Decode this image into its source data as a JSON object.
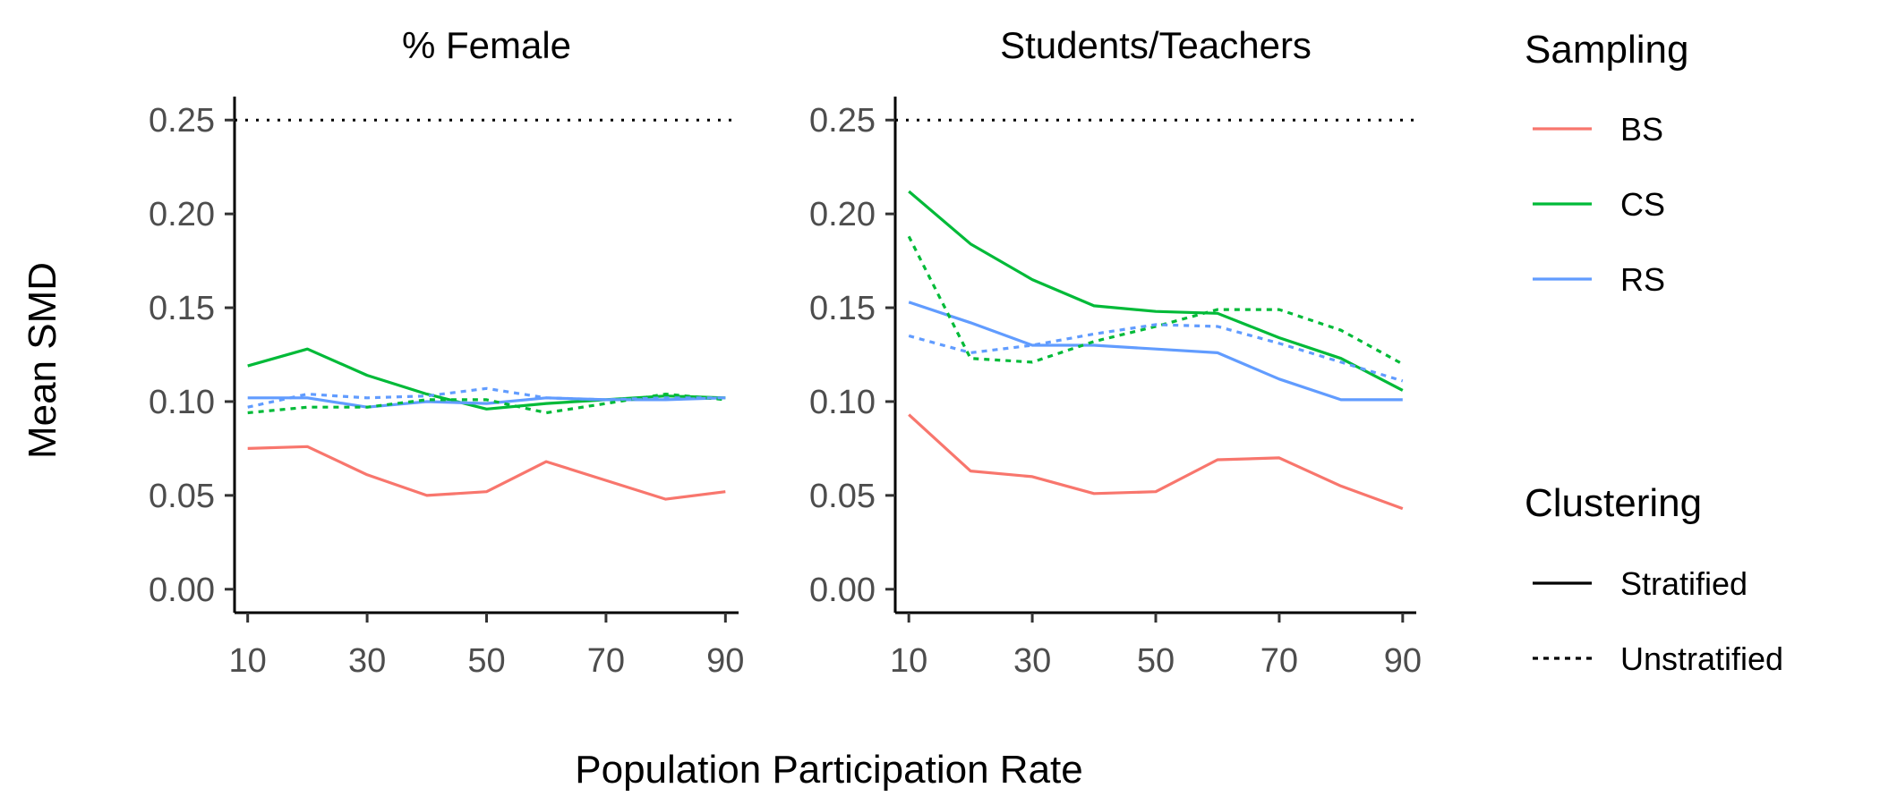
{
  "chart_data": {
    "type": "line",
    "xlabel": "Population Participation Rate",
    "ylabel": "Mean SMD",
    "x": [
      10,
      20,
      30,
      40,
      50,
      60,
      70,
      80,
      90
    ],
    "x_ticks": [
      10,
      30,
      50,
      70,
      90
    ],
    "x_tick_labels": [
      "10",
      "30",
      "50",
      "70",
      "90"
    ],
    "xlim": [
      7.8,
      92.2
    ],
    "y_ticks": [
      0,
      0.05,
      0.1,
      0.15,
      0.2,
      0.25
    ],
    "y_tick_labels": [
      "0.00",
      "0.05",
      "0.10",
      "0.15",
      "0.20",
      "0.25"
    ],
    "ylim": [
      -0.0125,
      0.2625
    ],
    "reference_line": 0.25,
    "grid": false,
    "panels": [
      {
        "title": "% Female",
        "series": [
          {
            "sampling": "BS",
            "clustering": "Stratified",
            "values": [
              0.075,
              0.076,
              0.061,
              0.05,
              0.052,
              0.068,
              0.058,
              0.048,
              0.052
            ]
          },
          {
            "sampling": "CS",
            "clustering": "Stratified",
            "values": [
              0.119,
              0.128,
              0.114,
              0.104,
              0.096,
              0.099,
              0.101,
              0.103,
              0.102
            ]
          },
          {
            "sampling": "RS",
            "clustering": "Stratified",
            "values": [
              0.102,
              0.102,
              0.097,
              0.1,
              0.099,
              0.102,
              0.101,
              0.101,
              0.102
            ]
          },
          {
            "sampling": "CS",
            "clustering": "Unstratified",
            "values": [
              0.094,
              0.097,
              0.097,
              0.101,
              0.101,
              0.094,
              0.099,
              0.104,
              0.101
            ]
          },
          {
            "sampling": "RS",
            "clustering": "Unstratified",
            "values": [
              0.097,
              0.104,
              0.102,
              0.103,
              0.107,
              0.102,
              0.101,
              0.102,
              0.102
            ]
          }
        ]
      },
      {
        "title": "Students/Teachers",
        "series": [
          {
            "sampling": "BS",
            "clustering": "Stratified",
            "values": [
              0.093,
              0.063,
              0.06,
              0.051,
              0.052,
              0.069,
              0.07,
              0.055,
              0.043
            ]
          },
          {
            "sampling": "CS",
            "clustering": "Stratified",
            "values": [
              0.212,
              0.184,
              0.165,
              0.151,
              0.148,
              0.147,
              0.134,
              0.123,
              0.106
            ]
          },
          {
            "sampling": "RS",
            "clustering": "Stratified",
            "values": [
              0.153,
              0.142,
              0.13,
              0.13,
              0.128,
              0.126,
              0.112,
              0.101,
              0.101
            ]
          },
          {
            "sampling": "CS",
            "clustering": "Unstratified",
            "values": [
              0.188,
              0.123,
              0.121,
              0.132,
              0.14,
              0.149,
              0.149,
              0.138,
              0.12
            ]
          },
          {
            "sampling": "RS",
            "clustering": "Unstratified",
            "values": [
              0.135,
              0.126,
              0.13,
              0.136,
              0.141,
              0.14,
              0.131,
              0.121,
              0.111
            ]
          }
        ]
      }
    ],
    "legends": [
      {
        "title": "Sampling",
        "entries": [
          {
            "label": "BS",
            "color": "#f8766d",
            "dash": "solid"
          },
          {
            "label": "CS",
            "color": "#00ba38",
            "dash": "solid"
          },
          {
            "label": "RS",
            "color": "#619cff",
            "dash": "solid"
          }
        ]
      },
      {
        "title": "Clustering",
        "entries": [
          {
            "label": "Stratified",
            "color": "#000000",
            "dash": "solid"
          },
          {
            "label": "Unstratified",
            "color": "#000000",
            "dash": "dotted"
          }
        ]
      }
    ],
    "legend_placement": "right",
    "colors": {
      "BS": "#f8766d",
      "CS": "#00ba38",
      "RS": "#619cff"
    }
  }
}
